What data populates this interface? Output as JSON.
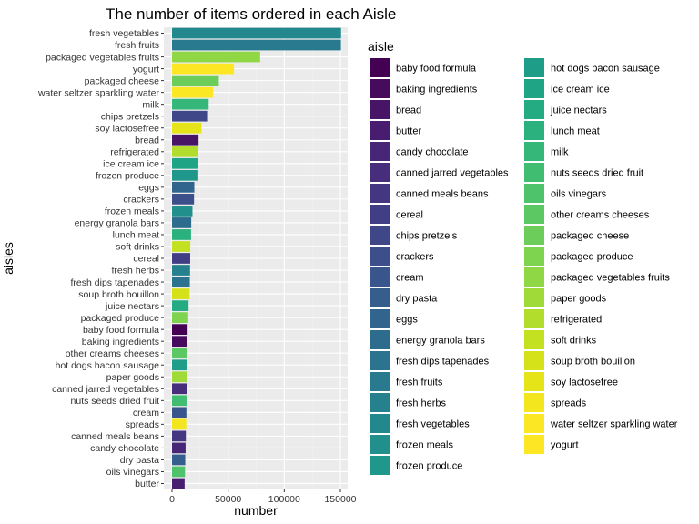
{
  "chart_data": {
    "type": "bar",
    "orientation": "horizontal",
    "title": "The number of items ordered in each Aisle",
    "xlabel": "number",
    "ylabel": "aisles",
    "legend_title": "aisle",
    "legend_position": "right",
    "xlim": [
      0,
      160000
    ],
    "x_ticks": [
      0,
      50000,
      100000,
      150000
    ],
    "x_tick_labels": [
      "0",
      "50000",
      "100000",
      "150000"
    ],
    "background": "#ebebeb",
    "grid": true,
    "categories": [
      "fresh vegetables",
      "fresh fruits",
      "packaged vegetables fruits",
      "yogurt",
      "packaged cheese",
      "water seltzer sparkling water",
      "milk",
      "chips pretzels",
      "soy lactosefree",
      "bread",
      "refrigerated",
      "ice cream ice",
      "frozen produce",
      "eggs",
      "crackers",
      "frozen meals",
      "energy granola bars",
      "lunch meat",
      "soft drinks",
      "cereal",
      "fresh herbs",
      "fresh dips tapenades",
      "soup broth bouillon",
      "juice nectars",
      "packaged produce",
      "baby food formula",
      "baking ingredients",
      "other creams cheeses",
      "hot dogs bacon sausage",
      "paper goods",
      "canned jarred vegetables",
      "nuts seeds dried fruit",
      "cream",
      "spreads",
      "canned meals beans",
      "candy chocolate",
      "dry pasta",
      "oils vinegars",
      "butter"
    ],
    "values": [
      150609,
      150473,
      78493,
      55240,
      41699,
      36617,
      32644,
      31269,
      26240,
      23635,
      23228,
      22676,
      22583,
      19875,
      19592,
      18221,
      17127,
      16957,
      16279,
      16201,
      16071,
      15866,
      15660,
      14726,
      14421,
      13906,
      13693,
      13534,
      13478,
      13441,
      13393,
      12962,
      12813,
      12696,
      12336,
      12101,
      11807,
      11580,
      11233
    ],
    "legend_items": [
      {
        "label": "baby food formula",
        "color": "#440154"
      },
      {
        "label": "baking ingredients",
        "color": "#460b5d"
      },
      {
        "label": "bread",
        "color": "#471466"
      },
      {
        "label": "butter",
        "color": "#481d6f"
      },
      {
        "label": "candy chocolate",
        "color": "#482677"
      },
      {
        "label": "canned jarred vegetables",
        "color": "#472e7c"
      },
      {
        "label": "canned meals beans",
        "color": "#453681"
      },
      {
        "label": "cereal",
        "color": "#423e85"
      },
      {
        "label": "chips pretzels",
        "color": "#3f4788"
      },
      {
        "label": "crackers",
        "color": "#3c4f8a"
      },
      {
        "label": "cream",
        "color": "#38568b"
      },
      {
        "label": "dry pasta",
        "color": "#355e8d"
      },
      {
        "label": "eggs",
        "color": "#31658e"
      },
      {
        "label": "energy granola bars",
        "color": "#2e6c8e"
      },
      {
        "label": "fresh dips tapenades",
        "color": "#2b738e"
      },
      {
        "label": "fresh fruits",
        "color": "#297a8e"
      },
      {
        "label": "fresh herbs",
        "color": "#26818e"
      },
      {
        "label": "fresh vegetables",
        "color": "#23888e"
      },
      {
        "label": "frozen meals",
        "color": "#21908d"
      },
      {
        "label": "frozen produce",
        "color": "#1f978b"
      },
      {
        "label": "hot dogs bacon sausage",
        "color": "#1e9e89"
      },
      {
        "label": "ice cream ice",
        "color": "#20a486"
      },
      {
        "label": "juice nectars",
        "color": "#24ab82"
      },
      {
        "label": "lunch meat",
        "color": "#2bb17d"
      },
      {
        "label": "milk",
        "color": "#35b779"
      },
      {
        "label": "nuts seeds dried fruit",
        "color": "#41bd72"
      },
      {
        "label": "oils vinegars",
        "color": "#4ec36b"
      },
      {
        "label": "other creams cheeses",
        "color": "#5cc863"
      },
      {
        "label": "packaged cheese",
        "color": "#6ccd5a"
      },
      {
        "label": "packaged produce",
        "color": "#7ed34f"
      },
      {
        "label": "packaged vegetables fruits",
        "color": "#8fd744"
      },
      {
        "label": "paper goods",
        "color": "#a0da39"
      },
      {
        "label": "refrigerated",
        "color": "#b2dd2d"
      },
      {
        "label": "soft drinks",
        "color": "#c3e021"
      },
      {
        "label": "soup broth bouillon",
        "color": "#d5e21a"
      },
      {
        "label": "soy lactosefree",
        "color": "#e5e419"
      },
      {
        "label": "spreads",
        "color": "#f4e61e"
      },
      {
        "label": "water seltzer sparkling water",
        "color": "#fbe723"
      },
      {
        "label": "yogurt",
        "color": "#fde725"
      }
    ]
  }
}
